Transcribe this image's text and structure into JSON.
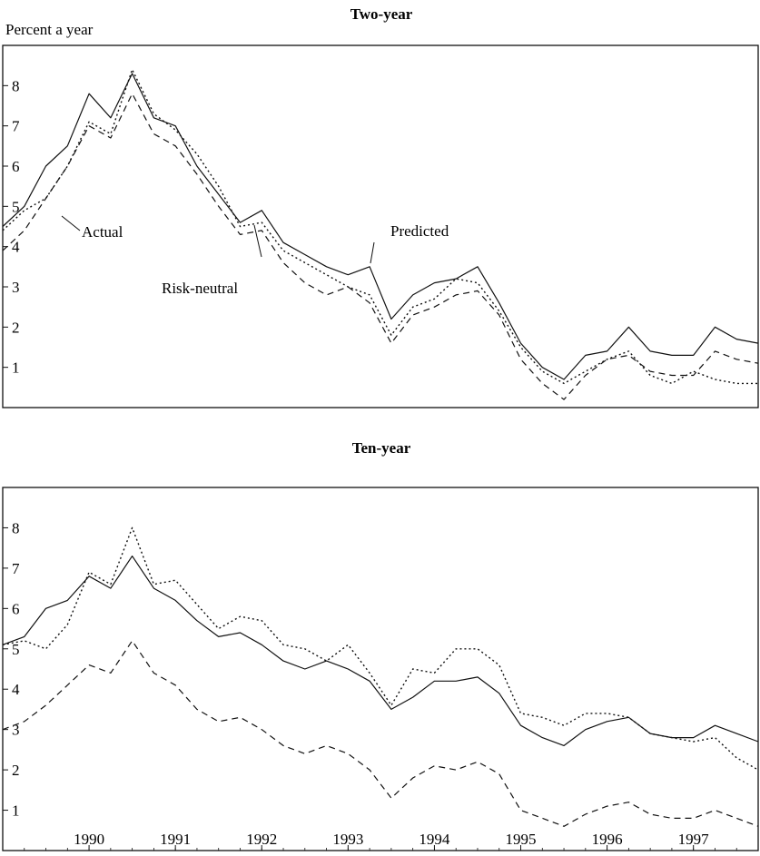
{
  "figure": {
    "y_axis_note": "Percent a year",
    "x_tick_labels": [
      "1990",
      "1991",
      "1992",
      "1993",
      "1994",
      "1995",
      "1996",
      "1997"
    ]
  },
  "chart_data": [
    {
      "type": "line",
      "title": "Two-year",
      "xlabel": "",
      "ylabel": "Percent a year",
      "xlim": [
        1989.0,
        1997.75
      ],
      "ylim": [
        0.0,
        9.0
      ],
      "yticks": [
        1,
        2,
        3,
        4,
        5,
        6,
        7,
        8
      ],
      "grid": false,
      "annotations": [
        "Actual",
        "Predicted",
        "Risk-neutral"
      ],
      "series": [
        {
          "name": "Actual",
          "style": "dotted",
          "x": [
            1989.0,
            1989.25,
            1989.5,
            1989.75,
            1990.0,
            1990.25,
            1990.5,
            1990.75,
            1991.0,
            1991.25,
            1991.5,
            1991.75,
            1992.0,
            1992.25,
            1992.5,
            1992.75,
            1993.0,
            1993.25,
            1993.5,
            1993.75,
            1994.0,
            1994.25,
            1994.5,
            1994.75,
            1995.0,
            1995.25,
            1995.5,
            1995.75,
            1996.0,
            1996.25,
            1996.5,
            1996.75,
            1997.0,
            1997.25,
            1997.5,
            1997.75
          ],
          "y": [
            4.4,
            4.9,
            5.2,
            6.0,
            7.1,
            6.8,
            8.4,
            7.3,
            6.9,
            6.3,
            5.5,
            4.5,
            4.6,
            3.9,
            3.6,
            3.3,
            3.0,
            2.8,
            1.8,
            2.5,
            2.7,
            3.2,
            3.1,
            2.4,
            1.5,
            0.9,
            0.6,
            0.9,
            1.2,
            1.4,
            0.8,
            0.6,
            0.9,
            0.7,
            0.6,
            0.6
          ]
        },
        {
          "name": "Predicted",
          "style": "solid",
          "x": [
            1989.0,
            1989.25,
            1989.5,
            1989.75,
            1990.0,
            1990.25,
            1990.5,
            1990.75,
            1991.0,
            1991.25,
            1991.5,
            1991.75,
            1992.0,
            1992.25,
            1992.5,
            1992.75,
            1993.0,
            1993.25,
            1993.5,
            1993.75,
            1994.0,
            1994.25,
            1994.5,
            1994.75,
            1995.0,
            1995.25,
            1995.5,
            1995.75,
            1996.0,
            1996.25,
            1996.5,
            1996.75,
            1997.0,
            1997.25,
            1997.5,
            1997.75
          ],
          "y": [
            4.5,
            5.0,
            6.0,
            6.5,
            7.8,
            7.2,
            8.3,
            7.2,
            7.0,
            6.0,
            5.3,
            4.6,
            4.9,
            4.1,
            3.8,
            3.5,
            3.3,
            3.5,
            2.2,
            2.8,
            3.1,
            3.2,
            3.5,
            2.6,
            1.6,
            1.0,
            0.7,
            1.3,
            1.4,
            2.0,
            1.4,
            1.3,
            1.3,
            2.0,
            1.7,
            1.6
          ]
        },
        {
          "name": "Risk-neutral",
          "style": "dashed",
          "x": [
            1989.0,
            1989.25,
            1989.5,
            1989.75,
            1990.0,
            1990.25,
            1990.5,
            1990.75,
            1991.0,
            1991.25,
            1991.5,
            1991.75,
            1992.0,
            1992.25,
            1992.5,
            1992.75,
            1993.0,
            1993.25,
            1993.5,
            1993.75,
            1994.0,
            1994.25,
            1994.5,
            1994.75,
            1995.0,
            1995.25,
            1995.5,
            1995.75,
            1996.0,
            1996.25,
            1996.5,
            1996.75,
            1997.0,
            1997.25,
            1997.5,
            1997.75
          ],
          "y": [
            3.9,
            4.4,
            5.2,
            6.0,
            7.0,
            6.7,
            7.8,
            6.8,
            6.5,
            5.8,
            5.0,
            4.3,
            4.4,
            3.6,
            3.1,
            2.8,
            3.0,
            2.6,
            1.6,
            2.3,
            2.5,
            2.8,
            2.9,
            2.3,
            1.2,
            0.6,
            0.2,
            0.8,
            1.2,
            1.3,
            0.9,
            0.8,
            0.8,
            1.4,
            1.2,
            1.1
          ]
        }
      ]
    },
    {
      "type": "line",
      "title": "Ten-year",
      "xlabel": "",
      "ylabel": "",
      "xlim": [
        1989.0,
        1997.75
      ],
      "ylim": [
        0.0,
        9.0
      ],
      "yticks": [
        1,
        2,
        3,
        4,
        5,
        6,
        7,
        8
      ],
      "xticks": [
        1990,
        1991,
        1992,
        1993,
        1994,
        1995,
        1996,
        1997
      ],
      "grid": false,
      "series": [
        {
          "name": "Actual",
          "style": "dotted",
          "x": [
            1989.0,
            1989.25,
            1989.5,
            1989.75,
            1990.0,
            1990.25,
            1990.5,
            1990.75,
            1991.0,
            1991.25,
            1991.5,
            1991.75,
            1992.0,
            1992.25,
            1992.5,
            1992.75,
            1993.0,
            1993.25,
            1993.5,
            1993.75,
            1994.0,
            1994.25,
            1994.5,
            1994.75,
            1995.0,
            1995.25,
            1995.5,
            1995.75,
            1996.0,
            1996.25,
            1996.5,
            1996.75,
            1997.0,
            1997.25,
            1997.5,
            1997.75
          ],
          "y": [
            5.1,
            5.2,
            5.0,
            5.6,
            6.9,
            6.6,
            8.0,
            6.6,
            6.7,
            6.1,
            5.5,
            5.8,
            5.7,
            5.1,
            5.0,
            4.7,
            5.1,
            4.4,
            3.6,
            4.5,
            4.4,
            5.0,
            5.0,
            4.6,
            3.4,
            3.3,
            3.1,
            3.4,
            3.4,
            3.3,
            2.9,
            2.8,
            2.7,
            2.8,
            2.3,
            2.0
          ]
        },
        {
          "name": "Predicted",
          "style": "solid",
          "x": [
            1989.0,
            1989.25,
            1989.5,
            1989.75,
            1990.0,
            1990.25,
            1990.5,
            1990.75,
            1991.0,
            1991.25,
            1991.5,
            1991.75,
            1992.0,
            1992.25,
            1992.5,
            1992.75,
            1993.0,
            1993.25,
            1993.5,
            1993.75,
            1994.0,
            1994.25,
            1994.5,
            1994.75,
            1995.0,
            1995.25,
            1995.5,
            1995.75,
            1996.0,
            1996.25,
            1996.5,
            1996.75,
            1997.0,
            1997.25,
            1997.5,
            1997.75
          ],
          "y": [
            5.1,
            5.3,
            6.0,
            6.2,
            6.8,
            6.5,
            7.3,
            6.5,
            6.2,
            5.7,
            5.3,
            5.4,
            5.1,
            4.7,
            4.5,
            4.7,
            4.5,
            4.2,
            3.5,
            3.8,
            4.2,
            4.2,
            4.3,
            3.9,
            3.1,
            2.8,
            2.6,
            3.0,
            3.2,
            3.3,
            2.9,
            2.8,
            2.8,
            3.1,
            2.9,
            2.7
          ]
        },
        {
          "name": "Risk-neutral",
          "style": "dashed",
          "x": [
            1989.0,
            1989.25,
            1989.5,
            1989.75,
            1990.0,
            1990.25,
            1990.5,
            1990.75,
            1991.0,
            1991.25,
            1991.5,
            1991.75,
            1992.0,
            1992.25,
            1992.5,
            1992.75,
            1993.0,
            1993.25,
            1993.5,
            1993.75,
            1994.0,
            1994.25,
            1994.5,
            1994.75,
            1995.0,
            1995.25,
            1995.5,
            1995.75,
            1996.0,
            1996.25,
            1996.5,
            1996.75,
            1997.0,
            1997.25,
            1997.5,
            1997.75
          ],
          "y": [
            3.0,
            3.2,
            3.6,
            4.1,
            4.6,
            4.4,
            5.2,
            4.4,
            4.1,
            3.5,
            3.2,
            3.3,
            3.0,
            2.6,
            2.4,
            2.6,
            2.4,
            2.0,
            1.3,
            1.8,
            2.1,
            2.0,
            2.2,
            1.9,
            1.0,
            0.8,
            0.6,
            0.9,
            1.1,
            1.2,
            0.9,
            0.8,
            0.8,
            1.0,
            0.8,
            0.6
          ]
        }
      ]
    }
  ]
}
